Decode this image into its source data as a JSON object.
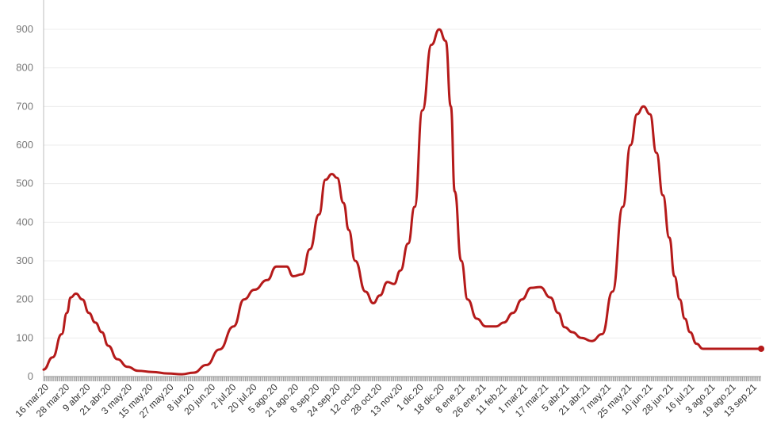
{
  "chart_data": {
    "type": "line",
    "title": "",
    "xlabel": "",
    "ylabel": "",
    "ylim": [
      0,
      900
    ],
    "yticks": [
      0,
      100,
      200,
      300,
      400,
      500,
      600,
      700,
      800,
      900
    ],
    "grid": true,
    "legend": "none",
    "line_color": "#b51a1a",
    "x_tick_labels": [
      "16 mar.20",
      "28 mar.20",
      "9 abr.20",
      "21 abr.20",
      "3 may.20",
      "15 may.20",
      "27 may.20",
      "8 jun.20",
      "20 jun.20",
      "2 jul.20",
      "20 jul.20",
      "5 ago.20",
      "21 ago.20",
      "8 sep.20",
      "24 sep.20",
      "12 oct.20",
      "28 oct.20",
      "13 nov.20",
      "1 dic.20",
      "18 dic.20",
      "8 ene.21",
      "26 ene.21",
      "11 feb.21",
      "1 mar.21",
      "17 mar.21",
      "5 abr.21",
      "21 abr.21",
      "7 may.21",
      "25 may.21",
      "10 jun.21",
      "28 jun.21",
      "16 jul.21",
      "3 ago.21",
      "19 ago.21",
      "13 sep.21"
    ],
    "series": [
      {
        "x": [
          "2020-03-16",
          "2020-03-23",
          "2020-03-30",
          "2020-04-03",
          "2020-04-06",
          "2020-04-10",
          "2020-04-15",
          "2020-04-20",
          "2020-04-25",
          "2020-04-30",
          "2020-05-05",
          "2020-05-12",
          "2020-05-20",
          "2020-05-28",
          "2020-06-08",
          "2020-06-20",
          "2020-07-01",
          "2020-07-10",
          "2020-07-20",
          "2020-07-30",
          "2020-08-10",
          "2020-08-18",
          "2020-08-26",
          "2020-09-05",
          "2020-09-12",
          "2020-09-20",
          "2020-09-25",
          "2020-10-02",
          "2020-10-08",
          "2020-10-15",
          "2020-10-20",
          "2020-10-25",
          "2020-10-29",
          "2020-11-03",
          "2020-11-07",
          "2020-11-12",
          "2020-11-20",
          "2020-11-26",
          "2020-12-01",
          "2020-12-07",
          "2020-12-12",
          "2020-12-17",
          "2020-12-23",
          "2020-12-28",
          "2021-01-03",
          "2021-01-10",
          "2021-01-16",
          "2021-01-21",
          "2021-01-25",
          "2021-01-28",
          "2021-02-02",
          "2021-02-07",
          "2021-02-14",
          "2021-02-21",
          "2021-03-01",
          "2021-03-07",
          "2021-03-14",
          "2021-03-21",
          "2021-03-28",
          "2021-04-04",
          "2021-04-12",
          "2021-04-18",
          "2021-04-23",
          "2021-04-29",
          "2021-05-06",
          "2021-05-14",
          "2021-05-22",
          "2021-05-30",
          "2021-06-07",
          "2021-06-13",
          "2021-06-18",
          "2021-06-23",
          "2021-06-28",
          "2021-07-03",
          "2021-07-08",
          "2021-07-13",
          "2021-07-17",
          "2021-07-21",
          "2021-07-25",
          "2021-07-29",
          "2021-08-03",
          "2021-08-08",
          "2021-08-13",
          "2021-08-18",
          "2021-08-24",
          "2021-08-30",
          "2021-09-05",
          "2021-09-11",
          "2021-09-17",
          "2021-09-22"
        ],
        "values": [
          18,
          50,
          110,
          165,
          205,
          215,
          200,
          165,
          140,
          115,
          80,
          45,
          25,
          15,
          12,
          8,
          6,
          10,
          30,
          70,
          130,
          200,
          225,
          250,
          285,
          285,
          260,
          265,
          330,
          420,
          510,
          525,
          515,
          450,
          380,
          300,
          220,
          190,
          210,
          245,
          240,
          275,
          345,
          440,
          690,
          860,
          900,
          870,
          700,
          480,
          300,
          200,
          150,
          130,
          130,
          140,
          165,
          200,
          230,
          232,
          205,
          165,
          128,
          115,
          100,
          92,
          110,
          220,
          440,
          600,
          680,
          700,
          680,
          580,
          470,
          360,
          260,
          200,
          150,
          115,
          85,
          72,
          72,
          72,
          72,
          72,
          72,
          72,
          72,
          72
        ],
        "values_note_removed": true
      }
    ]
  }
}
